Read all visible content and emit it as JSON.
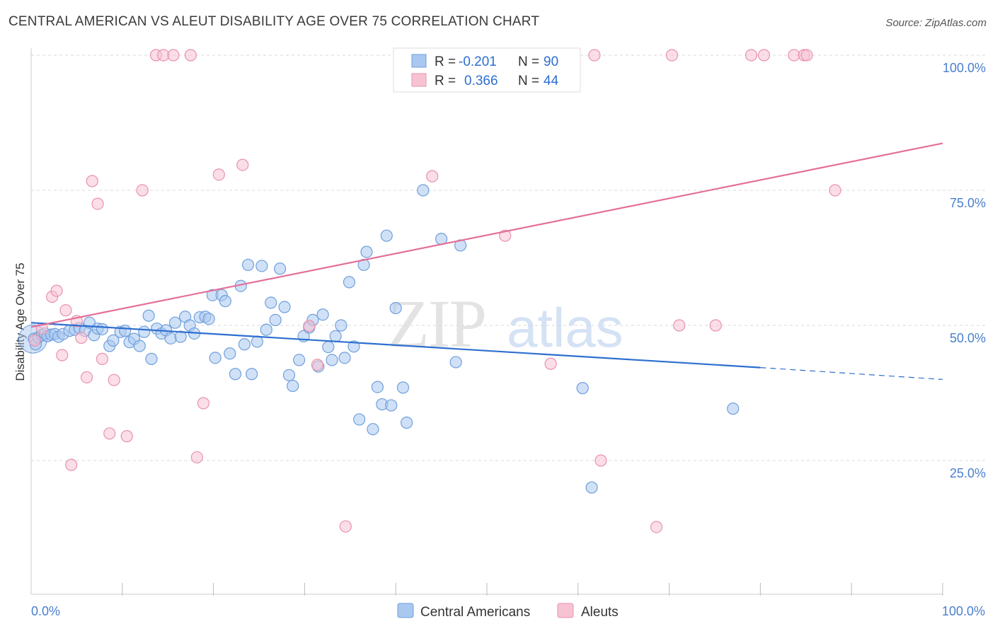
{
  "title": "CENTRAL AMERICAN VS ALEUT DISABILITY AGE OVER 75 CORRELATION CHART",
  "source": "Source: ZipAtlas.com",
  "watermark": {
    "zip": "ZIP",
    "atlas": "atlas"
  },
  "legend": {
    "row1": {
      "r_label": "R =",
      "r_value": "-0.201",
      "n_label": "N =",
      "n_value": "90"
    },
    "row2": {
      "r_label": "R =",
      "r_value": "0.366",
      "n_label": "N =",
      "n_value": "44"
    }
  },
  "colors": {
    "blue_fill": "#a9c8f0",
    "blue_stroke": "#6f9fdc",
    "blue_line": "#2d6fcf",
    "pink_fill": "#f7c3d3",
    "pink_stroke": "#e892ae",
    "pink_line": "#e36f98",
    "grid": "#d8d8d8",
    "axis_text": "#4a7fcf"
  },
  "chart_data": {
    "type": "scatter",
    "xlabel": "",
    "ylabel": "Disability Age Over 75",
    "xlim": [
      0,
      100
    ],
    "ylim": [
      0,
      100
    ],
    "x_tick_labels": [
      "0.0%",
      "100.0%"
    ],
    "y_tick_labels": [
      "100.0%",
      "75.0%",
      "50.0%",
      "25.0%"
    ],
    "y_ticks": [
      100,
      75,
      50,
      25
    ],
    "x_minor_ticks": [
      10,
      20,
      30,
      40,
      50,
      60,
      70,
      80,
      90,
      100
    ],
    "grid": true,
    "legend_position": "top-center",
    "series": [
      {
        "name": "Central Americans",
        "color": "#a9c8f0",
        "trend": {
          "x0": 0,
          "y0": 50.5,
          "x1": 80,
          "y1": 42.2,
          "dashed_to": 100,
          "y_dashed_end": 40.0
        },
        "points": [
          [
            0.3,
            47.5
          ],
          [
            0.5,
            46.5
          ],
          [
            0.8,
            47.8
          ],
          [
            1.2,
            48.2
          ],
          [
            1.5,
            48.5
          ],
          [
            1.8,
            48.0
          ],
          [
            2.2,
            48.3
          ],
          [
            2.6,
            48.4
          ],
          [
            3.0,
            47.9
          ],
          [
            3.5,
            48.4
          ],
          [
            4.2,
            49.0
          ],
          [
            4.8,
            49.2
          ],
          [
            5.3,
            49.5
          ],
          [
            5.9,
            49.0
          ],
          [
            6.4,
            50.5
          ],
          [
            6.9,
            48.2
          ],
          [
            7.3,
            49.4
          ],
          [
            7.8,
            49.3
          ],
          [
            8.6,
            46.2
          ],
          [
            9.0,
            47.2
          ],
          [
            9.8,
            48.8
          ],
          [
            10.3,
            49.0
          ],
          [
            10.8,
            46.9
          ],
          [
            11.3,
            47.5
          ],
          [
            11.9,
            46.2
          ],
          [
            12.4,
            48.8
          ],
          [
            12.9,
            51.8
          ],
          [
            13.2,
            43.8
          ],
          [
            13.8,
            49.4
          ],
          [
            14.3,
            48.5
          ],
          [
            14.8,
            49.1
          ],
          [
            15.3,
            47.6
          ],
          [
            15.8,
            50.5
          ],
          [
            16.4,
            47.9
          ],
          [
            16.9,
            51.6
          ],
          [
            17.4,
            50.0
          ],
          [
            17.9,
            48.5
          ],
          [
            18.5,
            51.5
          ],
          [
            19.1,
            51.6
          ],
          [
            19.5,
            51.2
          ],
          [
            19.9,
            55.6
          ],
          [
            20.2,
            44.0
          ],
          [
            20.9,
            55.6
          ],
          [
            21.3,
            54.5
          ],
          [
            21.8,
            44.8
          ],
          [
            22.4,
            41.0
          ],
          [
            23.0,
            57.3
          ],
          [
            23.4,
            46.5
          ],
          [
            23.8,
            61.2
          ],
          [
            24.2,
            41.0
          ],
          [
            24.8,
            47.0
          ],
          [
            25.3,
            61.0
          ],
          [
            25.8,
            49.2
          ],
          [
            26.3,
            54.2
          ],
          [
            26.8,
            51.0
          ],
          [
            27.3,
            60.5
          ],
          [
            27.8,
            53.4
          ],
          [
            28.3,
            40.8
          ],
          [
            28.7,
            38.8
          ],
          [
            29.4,
            43.6
          ],
          [
            29.9,
            48.0
          ],
          [
            30.5,
            49.6
          ],
          [
            30.9,
            51.0
          ],
          [
            31.5,
            42.4
          ],
          [
            32.0,
            52.0
          ],
          [
            32.6,
            46.0
          ],
          [
            33.0,
            43.6
          ],
          [
            33.4,
            48.0
          ],
          [
            34.0,
            50.0
          ],
          [
            34.4,
            44.0
          ],
          [
            34.9,
            58.0
          ],
          [
            35.4,
            46.1
          ],
          [
            36.0,
            32.6
          ],
          [
            36.5,
            61.2
          ],
          [
            36.8,
            63.6
          ],
          [
            37.5,
            30.8
          ],
          [
            38.0,
            38.6
          ],
          [
            38.5,
            35.4
          ],
          [
            39.0,
            66.6
          ],
          [
            39.5,
            35.2
          ],
          [
            40.0,
            53.2
          ],
          [
            40.8,
            38.5
          ],
          [
            41.2,
            32.0
          ],
          [
            43.0,
            75.0
          ],
          [
            45.0,
            66.0
          ],
          [
            46.6,
            43.2
          ],
          [
            47.1,
            64.8
          ],
          [
            60.5,
            38.4
          ],
          [
            61.5,
            20.0
          ],
          [
            77.0,
            34.6
          ]
        ]
      },
      {
        "name": "Aleuts",
        "color": "#f7c3d3",
        "trend": {
          "x0": 0,
          "y0": 49.7,
          "x1": 100,
          "y1": 83.7
        },
        "points": [
          [
            0.4,
            47.2
          ],
          [
            1.2,
            49.4
          ],
          [
            2.3,
            55.3
          ],
          [
            2.8,
            56.4
          ],
          [
            3.4,
            44.5
          ],
          [
            3.8,
            52.8
          ],
          [
            4.4,
            24.2
          ],
          [
            5.0,
            50.8
          ],
          [
            5.5,
            47.7
          ],
          [
            6.1,
            40.4
          ],
          [
            6.7,
            76.7
          ],
          [
            7.3,
            72.5
          ],
          [
            7.8,
            43.8
          ],
          [
            8.6,
            30.0
          ],
          [
            9.1,
            39.9
          ],
          [
            10.5,
            29.5
          ],
          [
            12.2,
            75.0
          ],
          [
            13.7,
            100
          ],
          [
            14.5,
            100
          ],
          [
            15.6,
            100
          ],
          [
            17.5,
            100
          ],
          [
            18.2,
            25.6
          ],
          [
            18.9,
            35.6
          ],
          [
            20.6,
            77.9
          ],
          [
            23.2,
            79.7
          ],
          [
            30.5,
            49.9
          ],
          [
            31.4,
            42.7
          ],
          [
            34.5,
            12.8
          ],
          [
            44.0,
            77.6
          ],
          [
            47.0,
            100
          ],
          [
            52.0,
            66.6
          ],
          [
            57.0,
            42.9
          ],
          [
            61.8,
            100
          ],
          [
            62.5,
            25.0
          ],
          [
            68.6,
            12.7
          ],
          [
            70.3,
            100
          ],
          [
            71.1,
            50.0
          ],
          [
            75.1,
            50.0
          ],
          [
            79.0,
            100
          ],
          [
            80.4,
            100
          ],
          [
            83.7,
            100
          ],
          [
            84.8,
            100
          ],
          [
            85.1,
            100
          ],
          [
            88.2,
            75.0
          ]
        ]
      }
    ]
  }
}
